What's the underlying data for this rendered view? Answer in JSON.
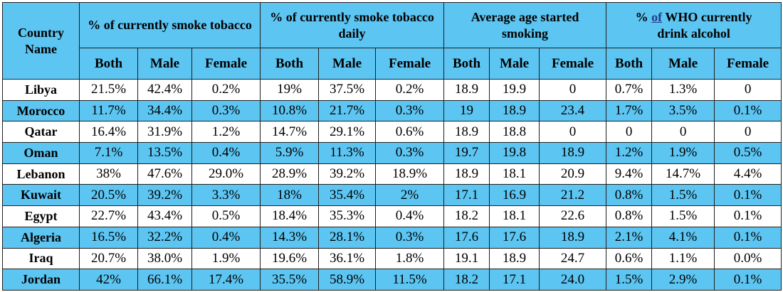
{
  "header": {
    "country": "Country Name",
    "groups": [
      {
        "pre": "",
        "link": "",
        "post": "% of currently smoke tobacco"
      },
      {
        "pre": "",
        "link": "",
        "post": "% of currently smoke tobacco daily"
      },
      {
        "pre": "",
        "link": "",
        "post": "Average age started smoking"
      },
      {
        "pre": "% ",
        "link": "of",
        "post": " WHO currently drink alcohol"
      }
    ],
    "subs": [
      "Both",
      "Male",
      "Female"
    ]
  },
  "rows": [
    {
      "country": "Libya",
      "v": [
        "21.5%",
        "42.4%",
        "0.2%",
        "19%",
        "37.5%",
        "0.2%",
        "18.9",
        "19.9",
        "0",
        "0.7%",
        "1.3%",
        "0"
      ]
    },
    {
      "country": "Morocco",
      "v": [
        "11.7%",
        "34.4%",
        "0.3%",
        "10.8%",
        "21.7%",
        "0.3%",
        "19",
        "18.9",
        "23.4",
        "1.7%",
        "3.5%",
        "0.1%"
      ]
    },
    {
      "country": "Qatar",
      "v": [
        "16.4%",
        "31.9%",
        "1.2%",
        "14.7%",
        "29.1%",
        "0.6%",
        "18.9",
        "18.8",
        "0",
        "0",
        "0",
        "0"
      ]
    },
    {
      "country": "Oman",
      "v": [
        "7.1%",
        "13.5%",
        "0.4%",
        "5.9%",
        "11.3%",
        "0.3%",
        "19.7",
        "19.8",
        "18.9",
        "1.2%",
        "1.9%",
        "0.5%"
      ]
    },
    {
      "country": "Lebanon",
      "v": [
        "38%",
        "47.6%",
        "29.0%",
        "28.9%",
        "39.2%",
        "18.9%",
        "18.9",
        "18.1",
        "20.9",
        "9.4%",
        "14.7%",
        "4.4%"
      ]
    },
    {
      "country": "Kuwait",
      "v": [
        "20.5%",
        "39.2%",
        "3.3%",
        "18%",
        "35.4%",
        "2%",
        "17.1",
        "16.9",
        "21.2",
        "0.8%",
        "1.5%",
        "0.1%"
      ]
    },
    {
      "country": "Egypt",
      "v": [
        "22.7%",
        "43.4%",
        "0.5%",
        "18.4%",
        "35.3%",
        "0.4%",
        "18.2",
        "18.1",
        "22.6",
        "0.8%",
        "1.5%",
        "0.1%"
      ]
    },
    {
      "country": "Algeria",
      "v": [
        "16.5%",
        "32.2%",
        "0.4%",
        "14.3%",
        "28.1%",
        "0.3%",
        "17.6",
        "17.6",
        "18.9",
        "2.1%",
        "4.1%",
        "0.1%"
      ]
    },
    {
      "country": "Iraq",
      "v": [
        "20.7%",
        "38.0%",
        "1.9%",
        "19.6%",
        "36.1%",
        "1.8%",
        "19.1",
        "18.9",
        "24.7",
        "0.6%",
        "1.1%",
        "0.0%"
      ]
    },
    {
      "country": "Jordan",
      "v": [
        "42%",
        "66.1%",
        "17.4%",
        "35.5%",
        "58.9%",
        "11.5%",
        "18.2",
        "17.1",
        "24.0",
        "1.5%",
        "2.9%",
        "0.1%"
      ]
    }
  ]
}
